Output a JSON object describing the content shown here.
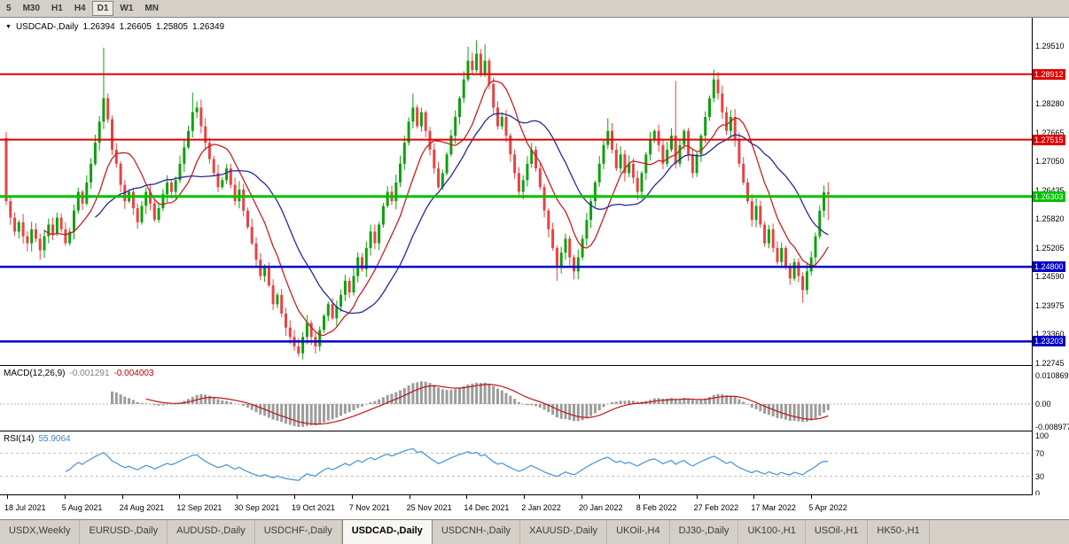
{
  "toolbar": {
    "timeframes": [
      {
        "label": "5",
        "active": false
      },
      {
        "label": "M30",
        "active": false
      },
      {
        "label": "H1",
        "active": false
      },
      {
        "label": "H4",
        "active": false
      },
      {
        "label": "D1",
        "active": true
      },
      {
        "label": "W1",
        "active": false
      },
      {
        "label": "MN",
        "active": false
      }
    ]
  },
  "chart": {
    "title": {
      "symbol": "USDCAD-,Daily",
      "open": "1.26394",
      "high": "1.26605",
      "low": "1.25805",
      "close": "1.26349"
    }
  },
  "macd": {
    "title": "MACD(12,26,9)",
    "value1": "-0.001291",
    "value2": "-0.004003",
    "axis": [
      "0.010869",
      "0.00",
      "-0.008977"
    ],
    "hist_color": "#9c9c9c",
    "signal_color": "#c41414"
  },
  "rsi": {
    "title": "RSI(14)",
    "value": "55.9064",
    "axis": [
      "100",
      "70",
      "30",
      "0"
    ],
    "line_color": "#4a90d2",
    "level_lines": [
      70,
      30
    ]
  },
  "tabs": [
    {
      "label": "USDX,Weekly",
      "active": false
    },
    {
      "label": "EURUSD-,Daily",
      "active": false
    },
    {
      "label": "AUDUSD-,Daily",
      "active": false
    },
    {
      "label": "USDCHF-,Daily",
      "active": false
    },
    {
      "label": "USDCAD-,Daily",
      "active": true
    },
    {
      "label": "USDCNH-,Daily",
      "active": false
    },
    {
      "label": "XAUUSD-,Daily",
      "active": false
    },
    {
      "label": "UKOil-,H4",
      "active": false
    },
    {
      "label": "DJ30-,Daily",
      "active": false
    },
    {
      "label": "UK100-,H1",
      "active": false
    },
    {
      "label": "USOil-,H1",
      "active": false
    },
    {
      "label": "HK50-,H1",
      "active": false
    }
  ],
  "chart_data": {
    "type": "candlestick",
    "symbol": "USDCAD",
    "timeframe": "Daily",
    "ohlc_current": {
      "open": 1.26394,
      "high": 1.26605,
      "low": 1.25805,
      "close": 1.26349
    },
    "price_range": {
      "min": 1.227,
      "max": 1.3012
    },
    "candle_colors": {
      "up": "#0da10d",
      "down": "#e84343"
    },
    "price_axis": {
      "ticks": [
        "1.29510",
        "1.28895",
        "1.28280",
        "1.27665",
        "1.27050",
        "1.26435",
        "1.25820",
        "1.25205",
        "1.24590",
        "1.23975",
        "1.23360",
        "1.22745"
      ]
    },
    "x_axis_labels": [
      "18 Jul 2021",
      "5 Aug 2021",
      "24 Aug 2021",
      "12 Sep 2021",
      "30 Sep 2021",
      "19 Oct 2021",
      "7 Nov 2021",
      "25 Nov 2021",
      "14 Dec 2021",
      "2 Jan 2022",
      "20 Jan 2022",
      "8 Feb 2022",
      "27 Feb 2022",
      "17 Mar 2022",
      "5 Apr 2022"
    ],
    "horizontal_levels": [
      {
        "price": 1.28912,
        "label": "1.28912",
        "color": "#e00000",
        "width": 2
      },
      {
        "price": 1.27515,
        "label": "1.27515",
        "color": "#e00000",
        "width": 2
      },
      {
        "price": 1.26303,
        "label": "1.26303",
        "color": "#00c000",
        "width": 3
      },
      {
        "price": 1.248,
        "label": "1.24800",
        "color": "#0000c8",
        "width": 2.5
      },
      {
        "price": 1.23203,
        "label": "1.23203",
        "color": "#0000c8",
        "width": 2.5
      }
    ],
    "moving_averages": [
      {
        "period": 10,
        "color": "#c82020"
      },
      {
        "period": 22,
        "color": "#282896"
      }
    ],
    "first_open": 1.2755,
    "closes": [
      1.262,
      1.2585,
      1.2555,
      1.2575,
      1.2545,
      1.253,
      1.256,
      1.254,
      1.2515,
      1.2545,
      1.257,
      1.255,
      1.2585,
      1.256,
      1.253,
      1.2555,
      1.26,
      1.264,
      1.2615,
      1.266,
      1.27,
      1.2745,
      1.279,
      1.284,
      1.2795,
      1.273,
      1.27,
      1.2655,
      1.262,
      1.264,
      1.2605,
      1.2575,
      1.261,
      1.264,
      1.2615,
      1.258,
      1.2605,
      1.2635,
      1.266,
      1.264,
      1.2665,
      1.27,
      1.2735,
      1.277,
      1.281,
      1.282,
      1.278,
      1.2745,
      1.271,
      1.268,
      1.265,
      1.2665,
      1.269,
      1.2655,
      1.262,
      1.2645,
      1.26,
      1.2565,
      1.253,
      1.2495,
      1.246,
      1.248,
      1.244,
      1.24,
      1.242,
      1.238,
      1.235,
      1.233,
      1.231,
      1.2295,
      1.233,
      1.236,
      1.233,
      1.231,
      1.2345,
      1.2375,
      1.24,
      1.237,
      1.2395,
      1.242,
      1.245,
      1.2425,
      1.246,
      1.25,
      1.2475,
      1.252,
      1.2555,
      1.253,
      1.257,
      1.261,
      1.264,
      1.262,
      1.266,
      1.27,
      1.2745,
      1.279,
      1.282,
      1.278,
      1.281,
      1.277,
      1.273,
      1.269,
      1.265,
      1.268,
      1.272,
      1.276,
      1.28,
      1.284,
      1.288,
      1.292,
      1.29,
      1.2935,
      1.289,
      1.292,
      1.287,
      1.282,
      1.278,
      1.28,
      1.276,
      1.272,
      1.268,
      1.264,
      1.2665,
      1.27,
      1.273,
      1.269,
      1.265,
      1.26,
      1.256,
      1.252,
      1.248,
      1.251,
      1.254,
      1.25,
      1.247,
      1.25,
      1.254,
      1.258,
      1.262,
      1.266,
      1.27,
      1.274,
      1.277,
      1.273,
      1.269,
      1.272,
      1.268,
      1.27,
      1.267,
      1.264,
      1.268,
      1.272,
      1.275,
      1.277,
      1.274,
      1.27,
      1.273,
      1.276,
      1.27,
      1.274,
      1.277,
      1.272,
      1.268,
      1.272,
      1.276,
      1.28,
      1.284,
      1.288,
      1.285,
      1.281,
      1.277,
      1.28,
      1.275,
      1.27,
      1.266,
      1.262,
      1.258,
      1.261,
      1.257,
      1.253,
      1.256,
      1.252,
      1.249,
      1.252,
      1.248,
      1.2455,
      1.249,
      1.246,
      1.243,
      1.247,
      1.25,
      1.2545,
      1.26,
      1.2639,
      1.26349
    ],
    "wick_overrides": {
      "0": {
        "h": 1.2768
      },
      "8": {
        "l": 1.2495
      },
      "23": {
        "h": 1.2948
      },
      "44": {
        "h": 1.2852
      },
      "69": {
        "l": 1.2288
      },
      "96": {
        "h": 1.285
      },
      "109": {
        "h": 1.295
      },
      "111": {
        "h": 1.2964
      },
      "113": {
        "h": 1.2955
      },
      "130": {
        "l": 1.245
      },
      "142": {
        "h": 1.2797
      },
      "158": {
        "h": 1.2877
      },
      "167": {
        "h": 1.2901
      },
      "188": {
        "l": 1.2403
      },
      "194": {
        "h": 1.26605,
        "l": 1.25805
      }
    }
  }
}
